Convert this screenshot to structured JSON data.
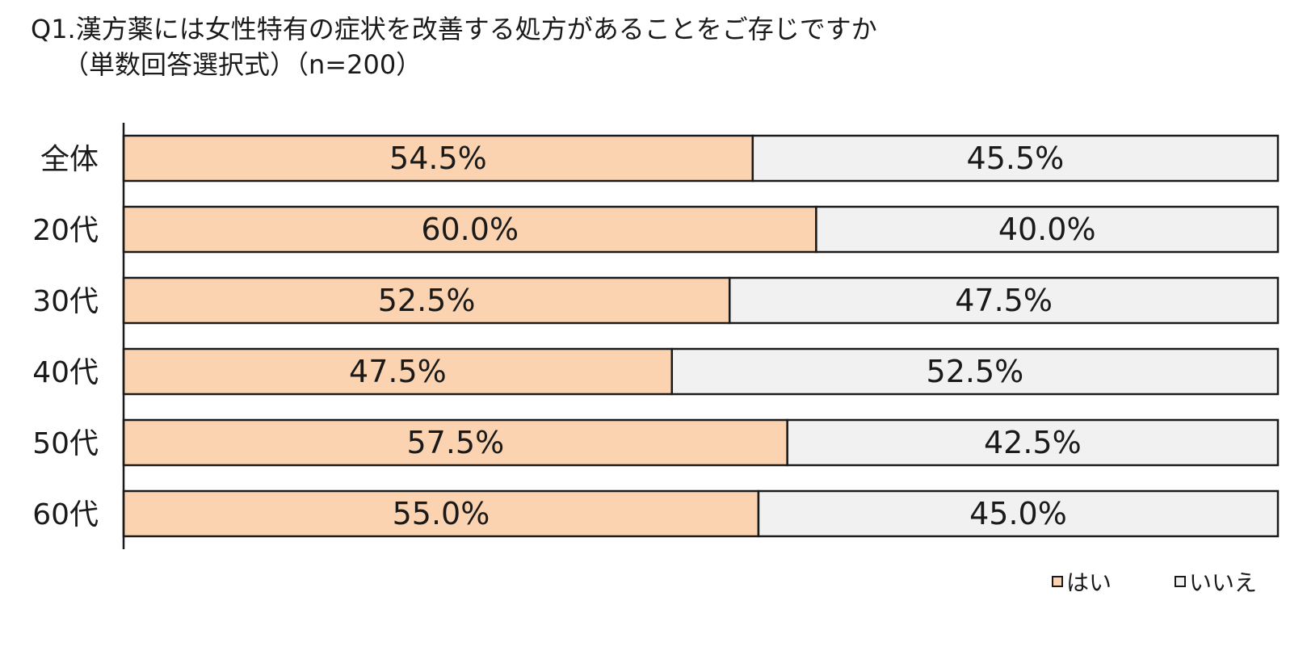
{
  "chart_data": {
    "type": "bar",
    "orientation": "horizontal",
    "stacked": "100%",
    "title": "Q1.漢方薬には女性特有の症状を改善する処方があることをご存じですか",
    "subtitle": "（単数回答選択式）（n=200）",
    "categories": [
      "全体",
      "20代",
      "30代",
      "40代",
      "50代",
      "60代"
    ],
    "series": [
      {
        "name": "はい",
        "values": [
          54.5,
          60.0,
          52.5,
          47.5,
          57.5,
          55.0
        ],
        "labels": [
          "54.5%",
          "60.0%",
          "52.5%",
          "47.5%",
          "57.5%",
          "55.0%"
        ],
        "color": "#fbd3b0"
      },
      {
        "name": "いいえ",
        "values": [
          45.5,
          40.0,
          47.5,
          52.5,
          42.5,
          45.0
        ],
        "labels": [
          "45.5%",
          "40.0%",
          "47.5%",
          "52.5%",
          "42.5%",
          "45.0%"
        ],
        "color": "#f1f1f1"
      }
    ],
    "xlim": [
      0,
      100
    ],
    "grid": false,
    "legend_position": "bottom-right"
  }
}
